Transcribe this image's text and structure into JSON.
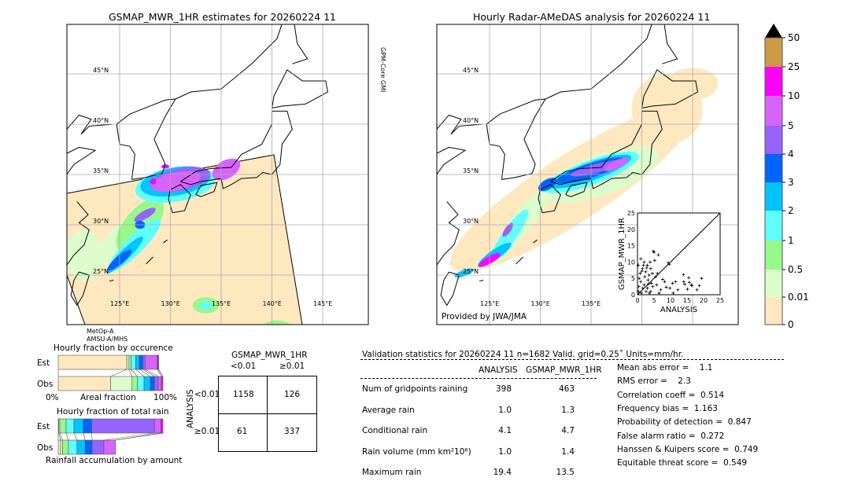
{
  "left_map": {
    "title": "GSMAP_MWR_1HR estimates for 20260224 11",
    "sensor_right": "GPM-Core GMI",
    "sensor_bottom_1": "MetOp-A",
    "sensor_bottom_2": "AMSU-A/MHS",
    "lat_labels": [
      "45°N",
      "40°N",
      "35°N",
      "30°N",
      "25°N"
    ],
    "lon_labels": [
      "125°E",
      "130°E",
      "135°E",
      "140°E",
      "145°E"
    ]
  },
  "right_map": {
    "title": "Hourly Radar-AMeDAS analysis for 20260224 11",
    "credit": "Provided by JWA/JMA",
    "lat_labels": [
      "45°N",
      "40°N",
      "35°N",
      "30°N",
      "25°N"
    ],
    "lon_labels": [
      "125°E",
      "130°E",
      "135°E"
    ]
  },
  "colorbar": {
    "labels": [
      "0",
      "0.01",
      "0.5",
      "1",
      "2",
      "3",
      "4",
      "5",
      "10",
      "25",
      "50"
    ],
    "colors": [
      "#fee8c0",
      "#dcfccc",
      "#96f98a",
      "#60fefe",
      "#00c4ff",
      "#0064ff",
      "#9664fa",
      "#d764fa",
      "#ff00ff",
      "#cd9a44"
    ],
    "extend_color": "#000000"
  },
  "chart_data": {
    "type": "scatter",
    "xlabel": "ANALYSIS",
    "ylabel": "GSMAP_MWR_1HR",
    "xlim": [
      0,
      25
    ],
    "ylim": [
      0,
      25
    ],
    "xticks": [
      "0",
      "5",
      "10",
      "15",
      "20",
      "25"
    ],
    "yticks": [
      "0",
      "5",
      "10",
      "15",
      "20",
      "25"
    ],
    "diagonal": true,
    "points": [
      [
        4.8,
        13.3
      ],
      [
        5,
        13
      ],
      [
        6.3,
        12.2
      ],
      [
        9.3,
        9.8
      ],
      [
        9.6,
        9.3
      ],
      [
        5.2,
        10.5
      ],
      [
        7.6,
        4.7
      ],
      [
        8.2,
        4
      ],
      [
        10.6,
        3.5
      ],
      [
        11.5,
        4
      ],
      [
        13.9,
        6.1
      ],
      [
        14,
        4
      ],
      [
        14.3,
        3.2
      ],
      [
        15.5,
        5.2
      ],
      [
        15.7,
        3.8
      ],
      [
        16.3,
        3
      ],
      [
        16.5,
        2.8
      ],
      [
        18.7,
        2.8
      ],
      [
        19.4,
        5
      ],
      [
        18,
        1.5
      ],
      [
        15.1,
        1.7
      ],
      [
        12.2,
        1.5
      ],
      [
        9.8,
        2
      ],
      [
        10.8,
        0.5
      ],
      [
        8.7,
        2.3
      ],
      [
        7,
        1.5
      ],
      [
        6.5,
        0.5
      ],
      [
        1,
        11
      ],
      [
        2,
        10
      ],
      [
        3,
        9
      ],
      [
        4,
        8
      ],
      [
        1.5,
        8
      ],
      [
        2.5,
        7
      ],
      [
        3.5,
        6
      ],
      [
        0.5,
        5
      ],
      [
        1,
        4
      ],
      [
        2,
        3
      ],
      [
        3,
        2
      ],
      [
        4,
        1
      ],
      [
        0.3,
        1
      ],
      [
        1.2,
        0.5
      ],
      [
        2.2,
        5.5
      ],
      [
        3.2,
        4.5
      ],
      [
        4.2,
        3.5
      ],
      [
        0.8,
        6.5
      ],
      [
        1.8,
        9
      ],
      [
        2.8,
        8.2
      ],
      [
        3.8,
        10
      ],
      [
        4.5,
        6.5
      ],
      [
        5.5,
        5.5
      ],
      [
        5.8,
        3
      ],
      [
        6,
        6.5
      ],
      [
        0.4,
        2.5
      ],
      [
        1.6,
        2
      ],
      [
        2.6,
        1
      ],
      [
        3.6,
        0.5
      ],
      [
        4.6,
        2.5
      ],
      [
        0.2,
        9
      ],
      [
        1.3,
        7.2
      ],
      [
        3.3,
        3.3
      ]
    ]
  },
  "occurrence": {
    "title": "Hourly fraction by occurence",
    "est_label": "Est",
    "obs_label": "Obs",
    "axis_left": "0%",
    "axis_mid": "Areal fraction",
    "axis_right": "100%",
    "est": [
      0.655,
      0.02,
      0.02,
      0.045,
      0.035,
      0.035,
      0.02,
      0.115,
      0.01,
      0.005
    ],
    "obs": [
      0.5,
      0.205,
      0.05,
      0.065,
      0.06,
      0.04,
      0.035,
      0.03,
      0.015,
      0
    ]
  },
  "total_rain": {
    "title": "Hourly fraction of total rain",
    "est_label": "Est",
    "obs_label": "Obs",
    "footer": "Rainfall accumulation by amount",
    "est": [
      0.005,
      0.01,
      0.06,
      0.075,
      0.09,
      0.08,
      0.6,
      0.06,
      0.02,
      0
    ],
    "obs": [
      0.03,
      0.025,
      0.075,
      0.11,
      0.105,
      0.09,
      0.15,
      0.15,
      0,
      0
    ]
  },
  "contingency": {
    "title": "GSMAP_MWR_1HR",
    "col_labels": [
      "<0.01",
      "≥0.01"
    ],
    "row_axis": "ANALYSIS",
    "row_labels": [
      "<0.01",
      "≥0.01"
    ],
    "cells": [
      [
        "1158",
        "126"
      ],
      [
        "61",
        "337"
      ]
    ]
  },
  "validation": {
    "header": "Validation statistics for 20260224 11  n=1682 Valid. grid=0.25˚ Units=mm/hr.",
    "col_headers": [
      "ANALYSIS",
      "GSMAP_MWR_1HR"
    ],
    "rows": [
      {
        "label": "Num of gridpoints raining",
        "a": "398",
        "g": "463"
      },
      {
        "label": "Average rain",
        "a": "1.0",
        "g": "1.3"
      },
      {
        "label": "Conditional rain",
        "a": "4.1",
        "g": "4.7"
      },
      {
        "label": "Rain volume (mm km²10⁶)",
        "a": "1.0",
        "g": "1.4"
      },
      {
        "label": "Maximum rain",
        "a": "19.4",
        "g": "13.5"
      }
    ],
    "scores": [
      "Mean abs error =    1.1",
      "RMS error =    2.3",
      "Correlation coeff =  0.514",
      "Frequency bias =  1.163",
      "Probability of detection =  0.847",
      "False alarm ratio =  0.272",
      "Hanssen & Kuipers score =  0.749",
      "Equitable threat score =  0.549"
    ]
  }
}
